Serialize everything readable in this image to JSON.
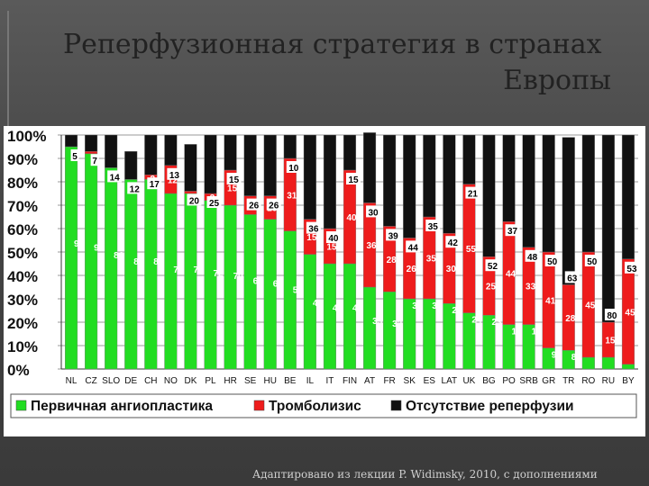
{
  "title_line1": "Реперфузионная стратегия в странах",
  "title_line2": "Европы",
  "footer": "Адаптировано из лекции P. Widimsky, 2010, с дополнениями",
  "chart_data": {
    "type": "bar",
    "stacked": true,
    "title": "",
    "xlabel": "",
    "ylabel": "",
    "ylim": [
      0,
      100
    ],
    "y_ticks": [
      "0%",
      "10%",
      "20%",
      "30%",
      "40%",
      "50%",
      "60%",
      "70%",
      "80%",
      "90%",
      "100%"
    ],
    "grid": true,
    "legend_position": "bottom",
    "categories": [
      "NL",
      "CZ",
      "SLO",
      "DE",
      "CH",
      "NO",
      "DK",
      "PL",
      "HR",
      "SE",
      "HU",
      "BE",
      "IL",
      "IT",
      "FIN",
      "AT",
      "FR",
      "SK",
      "ES",
      "LAT",
      "UK",
      "BG",
      "PO",
      "SRB",
      "GR",
      "TR",
      "RO",
      "RU",
      "BY"
    ],
    "series": [
      {
        "name": "Первичная ангиопластика",
        "color": "#22dd22",
        "values": [
          95,
          92,
          86,
          81,
          81,
          75,
          75,
          72,
          70,
          66,
          64,
          59,
          49,
          45,
          45,
          35,
          33,
          30,
          30,
          28,
          24,
          23,
          19,
          19,
          9,
          8,
          5,
          5,
          2
        ]
      },
      {
        "name": "Тромболизис",
        "color": "#ee1c1c",
        "values": [
          0,
          1,
          0,
          0,
          2,
          12,
          1,
          3,
          15,
          8,
          10,
          31,
          15,
          15,
          40,
          36,
          28,
          26,
          35,
          30,
          55,
          25,
          44,
          33,
          41,
          28,
          45,
          15,
          45
        ],
        "labels": [
          "",
          "",
          "",
          "",
          "2",
          "12",
          "",
          "3",
          "15",
          "8",
          "10",
          "31",
          "15",
          "15",
          "40",
          "36",
          "28",
          "26",
          "35",
          "30",
          "55",
          "25",
          "44",
          "33",
          "41",
          "28",
          "45",
          "15",
          "45"
        ]
      },
      {
        "name": "Отсутствие реперфузии",
        "color": "#111111",
        "values": [
          5,
          7,
          14,
          12,
          17,
          13,
          20,
          25,
          15,
          26,
          26,
          10,
          36,
          40,
          15,
          30,
          39,
          44,
          35,
          42,
          21,
          52,
          37,
          48,
          50,
          63,
          50,
          80,
          53
        ]
      }
    ]
  }
}
